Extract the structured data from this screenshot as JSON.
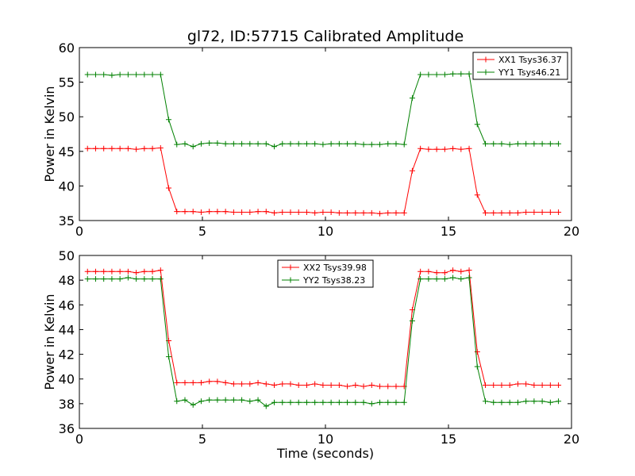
{
  "chart_data": [
    {
      "type": "line",
      "title": "gl72, ID:57715 Calibrated Amplitude",
      "xlabel": "",
      "ylabel": "Power in Kelvin",
      "xlim": [
        0,
        20
      ],
      "ylim": [
        35,
        60
      ],
      "xticks": [
        "0",
        "5",
        "10",
        "15",
        "20"
      ],
      "yticks": [
        "35",
        "40",
        "45",
        "50",
        "55",
        "60"
      ],
      "legend_position": "top-right",
      "grid": false,
      "x": [
        0.33,
        0.66,
        0.99,
        1.32,
        1.65,
        1.98,
        2.31,
        2.64,
        2.97,
        3.3,
        3.63,
        3.96,
        4.29,
        4.62,
        4.95,
        5.28,
        5.61,
        5.94,
        6.27,
        6.6,
        6.93,
        7.26,
        7.59,
        7.92,
        8.25,
        8.58,
        8.91,
        9.24,
        9.57,
        9.9,
        10.23,
        10.56,
        10.89,
        11.22,
        11.55,
        11.88,
        12.21,
        12.54,
        12.87,
        13.2,
        13.53,
        13.86,
        14.19,
        14.52,
        14.85,
        15.18,
        15.51,
        15.84,
        16.17,
        16.5,
        16.83,
        17.16,
        17.49,
        17.82,
        18.15,
        18.48,
        18.81,
        19.14,
        19.47
      ],
      "series": [
        {
          "name": "XX1 Tsys36.37",
          "color": "#ff0000",
          "values": [
            45.4,
            45.4,
            45.4,
            45.4,
            45.4,
            45.4,
            45.3,
            45.4,
            45.4,
            45.5,
            39.7,
            36.3,
            36.3,
            36.3,
            36.2,
            36.3,
            36.3,
            36.3,
            36.2,
            36.2,
            36.2,
            36.3,
            36.3,
            36.1,
            36.2,
            36.2,
            36.2,
            36.2,
            36.1,
            36.2,
            36.2,
            36.1,
            36.1,
            36.1,
            36.1,
            36.1,
            36.0,
            36.1,
            36.1,
            36.1,
            42.2,
            45.4,
            45.3,
            45.3,
            45.3,
            45.4,
            45.3,
            45.4,
            38.7,
            36.1,
            36.1,
            36.1,
            36.1,
            36.1,
            36.2,
            36.2,
            36.2,
            36.2,
            36.2
          ]
        },
        {
          "name": "YY1 Tsys46.21",
          "color": "#008000",
          "values": [
            56.1,
            56.1,
            56.1,
            56.0,
            56.1,
            56.1,
            56.1,
            56.1,
            56.1,
            56.1,
            49.6,
            46.0,
            46.1,
            45.7,
            46.1,
            46.2,
            46.2,
            46.1,
            46.1,
            46.1,
            46.1,
            46.1,
            46.1,
            45.7,
            46.1,
            46.1,
            46.1,
            46.1,
            46.1,
            46.0,
            46.1,
            46.1,
            46.1,
            46.1,
            46.0,
            46.0,
            46.0,
            46.1,
            46.1,
            46.0,
            52.7,
            56.1,
            56.1,
            56.1,
            56.1,
            56.2,
            56.2,
            56.2,
            48.9,
            46.1,
            46.1,
            46.1,
            46.0,
            46.1,
            46.1,
            46.1,
            46.1,
            46.1,
            46.1
          ]
        }
      ]
    },
    {
      "type": "line",
      "title": "",
      "xlabel": "Time (seconds)",
      "ylabel": "Power in Kelvin",
      "xlim": [
        0,
        20
      ],
      "ylim": [
        36,
        50
      ],
      "xticks": [
        "0",
        "5",
        "10",
        "15",
        "20"
      ],
      "yticks": [
        "36",
        "38",
        "40",
        "42",
        "44",
        "46",
        "48",
        "50"
      ],
      "legend_position": "upper-center",
      "grid": false,
      "x": [
        0.33,
        0.66,
        0.99,
        1.32,
        1.65,
        1.98,
        2.31,
        2.64,
        2.97,
        3.3,
        3.63,
        3.96,
        4.29,
        4.62,
        4.95,
        5.28,
        5.61,
        5.94,
        6.27,
        6.6,
        6.93,
        7.26,
        7.59,
        7.92,
        8.25,
        8.58,
        8.91,
        9.24,
        9.57,
        9.9,
        10.23,
        10.56,
        10.89,
        11.22,
        11.55,
        11.88,
        12.21,
        12.54,
        12.87,
        13.2,
        13.53,
        13.86,
        14.19,
        14.52,
        14.85,
        15.18,
        15.51,
        15.84,
        16.17,
        16.5,
        16.83,
        17.16,
        17.49,
        17.82,
        18.15,
        18.48,
        18.81,
        19.14,
        19.47
      ],
      "series": [
        {
          "name": "XX2 Tsys39.98",
          "color": "#ff0000",
          "values": [
            48.7,
            48.7,
            48.7,
            48.7,
            48.7,
            48.7,
            48.6,
            48.7,
            48.7,
            48.8,
            43.1,
            39.7,
            39.7,
            39.7,
            39.7,
            39.8,
            39.8,
            39.7,
            39.6,
            39.6,
            39.6,
            39.7,
            39.6,
            39.5,
            39.6,
            39.6,
            39.5,
            39.5,
            39.6,
            39.5,
            39.5,
            39.5,
            39.4,
            39.5,
            39.4,
            39.5,
            39.4,
            39.4,
            39.4,
            39.4,
            45.6,
            48.7,
            48.7,
            48.6,
            48.6,
            48.8,
            48.7,
            48.8,
            42.2,
            39.5,
            39.5,
            39.5,
            39.5,
            39.6,
            39.6,
            39.5,
            39.5,
            39.5,
            39.5
          ]
        },
        {
          "name": "YY2 Tsys38.23",
          "color": "#008000",
          "values": [
            48.1,
            48.1,
            48.1,
            48.1,
            48.1,
            48.2,
            48.1,
            48.1,
            48.1,
            48.1,
            41.8,
            38.2,
            38.3,
            37.9,
            38.2,
            38.3,
            38.3,
            38.3,
            38.3,
            38.3,
            38.2,
            38.3,
            37.8,
            38.1,
            38.1,
            38.1,
            38.1,
            38.1,
            38.1,
            38.1,
            38.1,
            38.1,
            38.1,
            38.1,
            38.1,
            38.0,
            38.1,
            38.1,
            38.1,
            38.1,
            44.7,
            48.1,
            48.1,
            48.1,
            48.1,
            48.2,
            48.1,
            48.2,
            41.0,
            38.2,
            38.1,
            38.1,
            38.1,
            38.1,
            38.2,
            38.2,
            38.2,
            38.1,
            38.2
          ]
        }
      ]
    }
  ]
}
